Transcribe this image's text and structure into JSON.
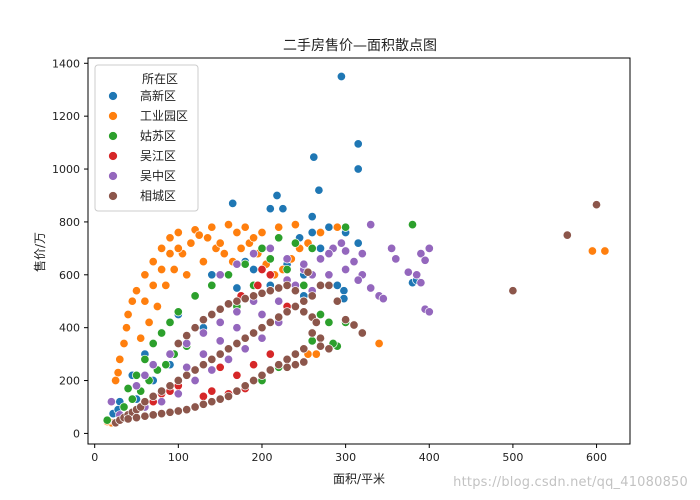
{
  "chart_data": {
    "type": "scatter",
    "title": "二手房售价—面积散点图",
    "xlabel": "面积/平米",
    "ylabel": "售价/万",
    "xlim": [
      -8,
      640
    ],
    "ylim": [
      -40,
      1420
    ],
    "xticks": [
      0,
      100,
      200,
      300,
      400,
      500,
      600
    ],
    "yticks": [
      0,
      200,
      400,
      600,
      800,
      1000,
      1200,
      1400
    ],
    "grid": false,
    "legend": {
      "title": "所在区",
      "placement": "top-left"
    },
    "series": [
      {
        "name": "高新区",
        "color": "#1f77b4",
        "points": [
          [
            295,
            1350
          ],
          [
            315,
            1095
          ],
          [
            262,
            1045
          ],
          [
            315,
            1000
          ],
          [
            268,
            920
          ],
          [
            218,
            900
          ],
          [
            210,
            850
          ],
          [
            225,
            850
          ],
          [
            165,
            870
          ],
          [
            260,
            820
          ],
          [
            240,
            790
          ],
          [
            280,
            780
          ],
          [
            300,
            760
          ],
          [
            260,
            760
          ],
          [
            315,
            720
          ],
          [
            298,
            540
          ],
          [
            298,
            510
          ],
          [
            290,
            560
          ],
          [
            380,
            570
          ],
          [
            385,
            580
          ],
          [
            250,
            600
          ],
          [
            230,
            640
          ],
          [
            200,
            700
          ],
          [
            180,
            650
          ],
          [
            140,
            600
          ],
          [
            120,
            520
          ],
          [
            100,
            450
          ],
          [
            80,
            380
          ],
          [
            60,
            300
          ],
          [
            45,
            220
          ],
          [
            30,
            120
          ],
          [
            22,
            75
          ],
          [
            28,
            90
          ],
          [
            35,
            100
          ],
          [
            50,
            130
          ],
          [
            70,
            200
          ],
          [
            90,
            260
          ],
          [
            110,
            330
          ],
          [
            130,
            400
          ],
          [
            150,
            470
          ],
          [
            170,
            550
          ],
          [
            190,
            620
          ],
          [
            210,
            560
          ],
          [
            230,
            480
          ],
          [
            250,
            520
          ],
          [
            270,
            700
          ],
          [
            245,
            740
          ]
        ]
      },
      {
        "name": "工业园区",
        "color": "#ff7f0e",
        "points": [
          [
            610,
            690
          ],
          [
            595,
            690
          ],
          [
            340,
            340
          ],
          [
            255,
            300
          ],
          [
            265,
            300
          ],
          [
            290,
            780
          ],
          [
            270,
            760
          ],
          [
            240,
            790
          ],
          [
            220,
            780
          ],
          [
            200,
            760
          ],
          [
            180,
            780
          ],
          [
            160,
            790
          ],
          [
            140,
            780
          ],
          [
            120,
            770
          ],
          [
            100,
            760
          ],
          [
            90,
            740
          ],
          [
            80,
            700
          ],
          [
            70,
            650
          ],
          [
            60,
            600
          ],
          [
            50,
            540
          ],
          [
            45,
            500
          ],
          [
            40,
            450
          ],
          [
            38,
            400
          ],
          [
            35,
            340
          ],
          [
            30,
            280
          ],
          [
            28,
            230
          ],
          [
            25,
            200
          ],
          [
            20,
            40
          ],
          [
            15,
            45
          ],
          [
            55,
            360
          ],
          [
            65,
            420
          ],
          [
            75,
            480
          ],
          [
            85,
            560
          ],
          [
            95,
            620
          ],
          [
            105,
            680
          ],
          [
            115,
            720
          ],
          [
            125,
            750
          ],
          [
            135,
            740
          ],
          [
            145,
            700
          ],
          [
            155,
            680
          ],
          [
            165,
            650
          ],
          [
            175,
            700
          ],
          [
            185,
            720
          ],
          [
            195,
            680
          ],
          [
            205,
            640
          ],
          [
            215,
            600
          ],
          [
            225,
            620
          ],
          [
            235,
            660
          ],
          [
            245,
            700
          ],
          [
            255,
            720
          ],
          [
            110,
            600
          ],
          [
            130,
            650
          ],
          [
            150,
            720
          ],
          [
            170,
            760
          ],
          [
            190,
            740
          ],
          [
            60,
            500
          ],
          [
            70,
            560
          ],
          [
            80,
            620
          ],
          [
            90,
            680
          ],
          [
            100,
            700
          ]
        ]
      },
      {
        "name": "姑苏区",
        "color": "#2ca02c",
        "points": [
          [
            15,
            50
          ],
          [
            40,
            170
          ],
          [
            50,
            220
          ],
          [
            60,
            280
          ],
          [
            70,
            340
          ],
          [
            80,
            380
          ],
          [
            90,
            420
          ],
          [
            100,
            460
          ],
          [
            120,
            520
          ],
          [
            140,
            560
          ],
          [
            160,
            600
          ],
          [
            180,
            640
          ],
          [
            200,
            700
          ],
          [
            220,
            740
          ],
          [
            240,
            720
          ],
          [
            260,
            700
          ],
          [
            280,
            420
          ],
          [
            300,
            420
          ],
          [
            300,
            780
          ],
          [
            380,
            790
          ],
          [
            290,
            330
          ],
          [
            270,
            450
          ],
          [
            250,
            560
          ],
          [
            230,
            620
          ],
          [
            210,
            660
          ],
          [
            190,
            560
          ],
          [
            170,
            480
          ],
          [
            150,
            420
          ],
          [
            130,
            380
          ],
          [
            110,
            330
          ],
          [
            95,
            300
          ],
          [
            85,
            260
          ],
          [
            75,
            240
          ],
          [
            65,
            200
          ],
          [
            55,
            160
          ],
          [
            45,
            130
          ],
          [
            35,
            100
          ],
          [
            200,
            200
          ],
          [
            220,
            250
          ],
          [
            240,
            300
          ],
          [
            260,
            350
          ],
          [
            285,
            340
          ]
        ]
      },
      {
        "name": "吴江区",
        "color": "#d62728",
        "points": [
          [
            140,
            160
          ],
          [
            160,
            150
          ],
          [
            180,
            170
          ],
          [
            130,
            140
          ],
          [
            200,
            620
          ],
          [
            210,
            600
          ],
          [
            230,
            480
          ],
          [
            250,
            500
          ],
          [
            120,
            200
          ],
          [
            100,
            180
          ],
          [
            90,
            160
          ],
          [
            80,
            150
          ],
          [
            70,
            120
          ],
          [
            60,
            100
          ],
          [
            170,
            220
          ],
          [
            190,
            260
          ],
          [
            210,
            300
          ],
          [
            150,
            250
          ],
          [
            175,
            520
          ],
          [
            195,
            560
          ]
        ]
      },
      {
        "name": "吴中区",
        "color": "#9467bd",
        "points": [
          [
            20,
            120
          ],
          [
            30,
            70
          ],
          [
            40,
            60
          ],
          [
            60,
            100
          ],
          [
            80,
            120
          ],
          [
            100,
            150
          ],
          [
            120,
            200
          ],
          [
            140,
            240
          ],
          [
            160,
            280
          ],
          [
            180,
            320
          ],
          [
            200,
            360
          ],
          [
            220,
            420
          ],
          [
            240,
            480
          ],
          [
            260,
            540
          ],
          [
            280,
            600
          ],
          [
            300,
            620
          ],
          [
            310,
            650
          ],
          [
            320,
            680
          ],
          [
            330,
            790
          ],
          [
            320,
            600
          ],
          [
            330,
            550
          ],
          [
            340,
            520
          ],
          [
            345,
            510
          ],
          [
            355,
            700
          ],
          [
            360,
            660
          ],
          [
            375,
            610
          ],
          [
            385,
            600
          ],
          [
            390,
            680
          ],
          [
            390,
            570
          ],
          [
            395,
            470
          ],
          [
            400,
            460
          ],
          [
            400,
            700
          ],
          [
            395,
            655
          ],
          [
            285,
            700
          ],
          [
            270,
            660
          ],
          [
            300,
            690
          ],
          [
            250,
            620
          ],
          [
            230,
            580
          ],
          [
            210,
            540
          ],
          [
            190,
            500
          ],
          [
            170,
            460
          ],
          [
            150,
            420
          ],
          [
            130,
            380
          ],
          [
            110,
            340
          ],
          [
            90,
            300
          ],
          [
            70,
            260
          ],
          [
            60,
            220
          ],
          [
            50,
            180
          ],
          [
            150,
            600
          ],
          [
            170,
            640
          ],
          [
            190,
            680
          ],
          [
            210,
            700
          ],
          [
            230,
            660
          ],
          [
            250,
            640
          ],
          [
            200,
            450
          ],
          [
            220,
            500
          ],
          [
            240,
            560
          ],
          [
            260,
            600
          ],
          [
            280,
            680
          ],
          [
            295,
            720
          ],
          [
            315,
            580
          ],
          [
            110,
            250
          ],
          [
            130,
            300
          ],
          [
            150,
            350
          ],
          [
            170,
            400
          ]
        ]
      },
      {
        "name": "相城区",
        "color": "#8c564b",
        "points": [
          [
            25,
            40
          ],
          [
            30,
            50
          ],
          [
            35,
            60
          ],
          [
            40,
            70
          ],
          [
            45,
            80
          ],
          [
            50,
            90
          ],
          [
            55,
            100
          ],
          [
            60,
            120
          ],
          [
            70,
            140
          ],
          [
            80,
            160
          ],
          [
            90,
            180
          ],
          [
            100,
            200
          ],
          [
            110,
            220
          ],
          [
            120,
            240
          ],
          [
            130,
            260
          ],
          [
            140,
            280
          ],
          [
            150,
            300
          ],
          [
            160,
            320
          ],
          [
            170,
            340
          ],
          [
            180,
            360
          ],
          [
            190,
            380
          ],
          [
            200,
            400
          ],
          [
            210,
            420
          ],
          [
            220,
            440
          ],
          [
            230,
            460
          ],
          [
            240,
            480
          ],
          [
            250,
            500
          ],
          [
            260,
            520
          ],
          [
            270,
            560
          ],
          [
            280,
            560
          ],
          [
            290,
            500
          ],
          [
            300,
            430
          ],
          [
            310,
            410
          ],
          [
            320,
            380
          ],
          [
            270,
            360
          ],
          [
            260,
            380
          ],
          [
            250,
            320
          ],
          [
            240,
            300
          ],
          [
            230,
            280
          ],
          [
            220,
            260
          ],
          [
            210,
            240
          ],
          [
            200,
            220
          ],
          [
            190,
            200
          ],
          [
            180,
            180
          ],
          [
            170,
            160
          ],
          [
            160,
            140
          ],
          [
            150,
            130
          ],
          [
            140,
            120
          ],
          [
            130,
            110
          ],
          [
            120,
            100
          ],
          [
            110,
            90
          ],
          [
            100,
            85
          ],
          [
            90,
            80
          ],
          [
            80,
            75
          ],
          [
            70,
            70
          ],
          [
            60,
            65
          ],
          [
            50,
            60
          ],
          [
            40,
            55
          ],
          [
            100,
            340
          ],
          [
            110,
            370
          ],
          [
            120,
            400
          ],
          [
            130,
            430
          ],
          [
            140,
            450
          ],
          [
            150,
            470
          ],
          [
            160,
            490
          ],
          [
            170,
            500
          ],
          [
            180,
            510
          ],
          [
            190,
            520
          ],
          [
            200,
            530
          ],
          [
            210,
            540
          ],
          [
            220,
            550
          ],
          [
            230,
            560
          ],
          [
            240,
            540
          ],
          [
            250,
            460
          ],
          [
            260,
            440
          ],
          [
            270,
            330
          ],
          [
            280,
            320
          ],
          [
            230,
            250
          ],
          [
            250,
            270
          ],
          [
            265,
            420
          ],
          [
            255,
            610
          ],
          [
            240,
            260
          ],
          [
            500,
            540
          ],
          [
            565,
            750
          ],
          [
            600,
            865
          ]
        ]
      }
    ]
  },
  "watermark": "https://blog.csdn.net/qq_41080850"
}
